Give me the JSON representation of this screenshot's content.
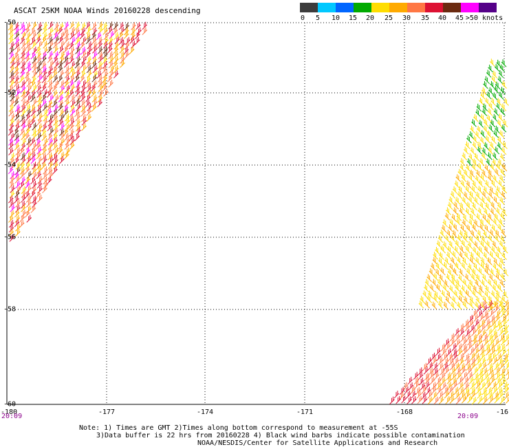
{
  "title": "ASCAT 25KM NOAA Winds 20160228 descending",
  "legend": {
    "labels": [
      "0",
      "5",
      "10",
      "15",
      "20",
      "25",
      "30",
      "35",
      "40",
      "45",
      ">50 knots"
    ],
    "colors": [
      "#3c3c3c",
      "#00c8ff",
      "#0066ff",
      "#00aa00",
      "#ffdd00",
      "#ffaa00",
      "#ff7744",
      "#dd1133",
      "#6b2a10",
      "#ff00ff",
      "#550088"
    ]
  },
  "axes": {
    "x_ticks": [
      "-180",
      "-177",
      "-174",
      "-171",
      "-168",
      "-16"
    ],
    "y_ticks": [
      "-50",
      "-52",
      "-54",
      "-56",
      "-58",
      "-60"
    ]
  },
  "times": {
    "left": "20:09",
    "right": "20:09"
  },
  "notes": {
    "line1": "Note: 1) Times are GMT 2)Times along bottom correspond to measurement at -55S",
    "line2": "3)Data buffer is 22 hrs from 20160228 4) Black wind barbs indicate possible contamination",
    "line3": "NOAA/NESDIS/Center for Satellite Applications and Research"
  }
}
